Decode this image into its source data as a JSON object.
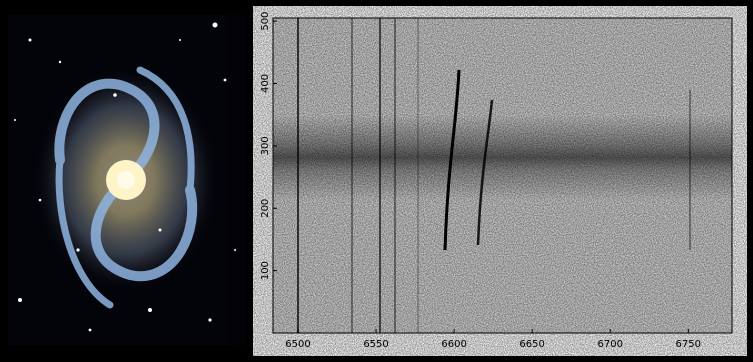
{
  "chart_data": {
    "type": "spectrum",
    "xlim": [
      6484,
      6778
    ],
    "xticks": [
      6500,
      6550,
      6600,
      6650,
      6700,
      6750
    ],
    "ylim": [
      0,
      505
    ],
    "yticks": [
      100,
      200,
      300,
      400,
      500
    ]
  }
}
